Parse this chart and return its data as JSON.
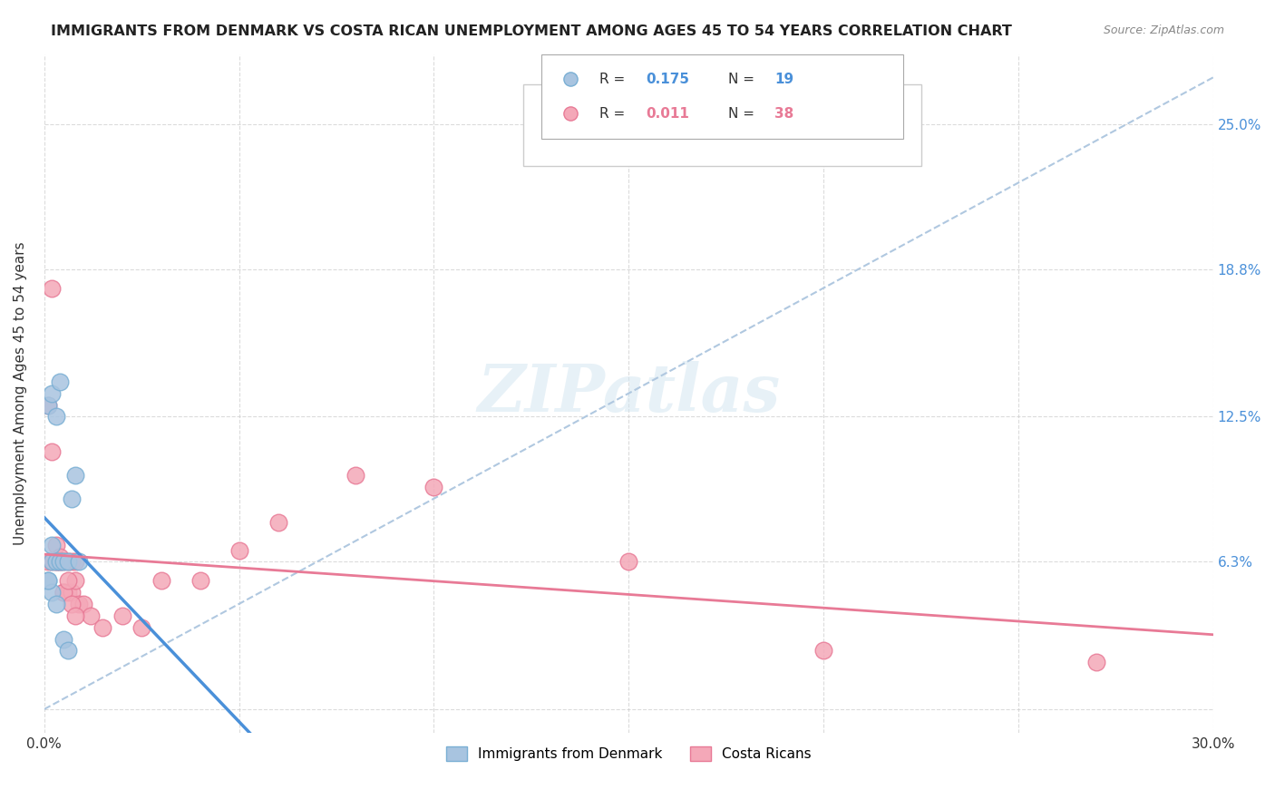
{
  "title": "IMMIGRANTS FROM DENMARK VS COSTA RICAN UNEMPLOYMENT AMONG AGES 45 TO 54 YEARS CORRELATION CHART",
  "source": "Source: ZipAtlas.com",
  "xlabel": "",
  "ylabel": "Unemployment Among Ages 45 to 54 years",
  "xlim": [
    0.0,
    0.3
  ],
  "ylim": [
    -0.01,
    0.28
  ],
  "xticks": [
    0.0,
    0.05,
    0.1,
    0.15,
    0.2,
    0.25,
    0.3
  ],
  "xticklabels": [
    "0.0%",
    "",
    "",
    "",
    "",
    "",
    "30.0%"
  ],
  "ytick_positions": [
    0.0,
    0.063,
    0.125,
    0.188,
    0.25
  ],
  "ytick_labels": [
    "",
    "6.3%",
    "12.5%",
    "18.8%",
    "25.0%"
  ],
  "grid_color": "#cccccc",
  "background_color": "#ffffff",
  "watermark": "ZIPatlas",
  "legend_r1": "R = 0.175",
  "legend_n1": "N = 19",
  "legend_r2": "R = 0.011",
  "legend_n2": "N = 38",
  "denmark_color": "#a8c4e0",
  "denmark_edge": "#7aafd4",
  "costarica_color": "#f4a8b8",
  "costarica_edge": "#e87a96",
  "trend_denmark_color": "#4a90d9",
  "trend_costarica_color": "#e87a96",
  "trend_dashed_color": "#b0c8e0",
  "denmark_x": [
    0.002,
    0.003,
    0.004,
    0.005,
    0.006,
    0.007,
    0.008,
    0.009,
    0.001,
    0.002,
    0.003,
    0.004,
    0.005,
    0.006,
    0.001,
    0.002,
    0.003,
    0.002,
    0.001
  ],
  "denmark_y": [
    0.063,
    0.063,
    0.063,
    0.063,
    0.063,
    0.09,
    0.1,
    0.063,
    0.13,
    0.135,
    0.125,
    0.14,
    0.03,
    0.025,
    0.055,
    0.05,
    0.045,
    0.07,
    0.055
  ],
  "costarica_x": [
    0.001,
    0.002,
    0.003,
    0.004,
    0.005,
    0.006,
    0.007,
    0.008,
    0.009,
    0.01,
    0.012,
    0.015,
    0.02,
    0.025,
    0.03,
    0.04,
    0.05,
    0.06,
    0.08,
    0.1,
    0.15,
    0.2,
    0.001,
    0.002,
    0.003,
    0.004,
    0.005,
    0.006,
    0.007,
    0.008,
    0.002,
    0.003,
    0.004,
    0.005,
    0.006,
    0.007,
    0.008,
    0.27
  ],
  "costarica_y": [
    0.063,
    0.063,
    0.063,
    0.063,
    0.05,
    0.05,
    0.05,
    0.055,
    0.045,
    0.045,
    0.04,
    0.035,
    0.04,
    0.035,
    0.055,
    0.055,
    0.068,
    0.08,
    0.1,
    0.095,
    0.063,
    0.025,
    0.13,
    0.11,
    0.07,
    0.065,
    0.05,
    0.055,
    0.045,
    0.04,
    0.18,
    0.063,
    0.063,
    0.063,
    0.063,
    0.063,
    0.063,
    0.02
  ]
}
